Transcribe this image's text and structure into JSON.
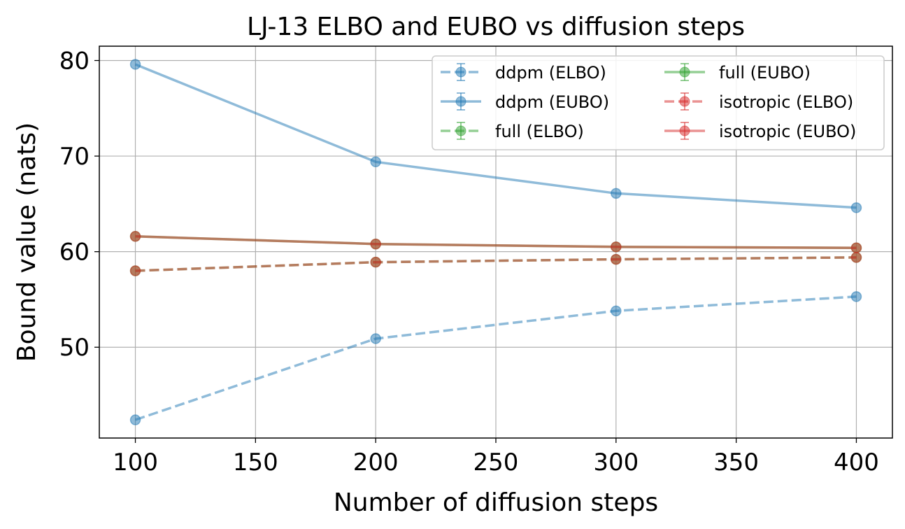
{
  "chart_data": {
    "type": "line",
    "title": "LJ-13 ELBO and EUBO vs diffusion steps",
    "xlabel": "Number of diffusion steps",
    "ylabel": "Bound value (nats)",
    "x": [
      100,
      200,
      300,
      400
    ],
    "xlim": [
      85,
      415
    ],
    "ylim": [
      40.5,
      81.5
    ],
    "xticks": [
      100,
      150,
      200,
      250,
      300,
      350,
      400
    ],
    "yticks": [
      50,
      60,
      70,
      80
    ],
    "xtick_labels": [
      "100",
      "150",
      "200",
      "250",
      "300",
      "350",
      "400"
    ],
    "ytick_labels": [
      "50",
      "60",
      "70",
      "80"
    ],
    "grid": true,
    "legend_position": "top-right",
    "series": [
      {
        "name": "ddpm (ELBO)",
        "color": "#1f77b4",
        "linestyle": "dashed",
        "values": [
          42.4,
          50.9,
          53.8,
          55.3
        ]
      },
      {
        "name": "ddpm (EUBO)",
        "color": "#1f77b4",
        "linestyle": "solid",
        "values": [
          79.6,
          69.4,
          66.1,
          64.6
        ]
      },
      {
        "name": "full (ELBO)",
        "color": "#2ca02c",
        "linestyle": "dashed",
        "values": [
          58.0,
          58.9,
          59.2,
          59.4
        ]
      },
      {
        "name": "full (EUBO)",
        "color": "#2ca02c",
        "linestyle": "solid",
        "values": [
          61.6,
          60.8,
          60.5,
          60.4
        ]
      },
      {
        "name": "isotropic (ELBO)",
        "color": "#d62728",
        "linestyle": "dashed",
        "values": [
          58.0,
          58.9,
          59.2,
          59.4
        ]
      },
      {
        "name": "isotropic (EUBO)",
        "color": "#d62728",
        "linestyle": "solid",
        "values": [
          61.6,
          60.8,
          60.5,
          60.4
        ]
      }
    ]
  }
}
